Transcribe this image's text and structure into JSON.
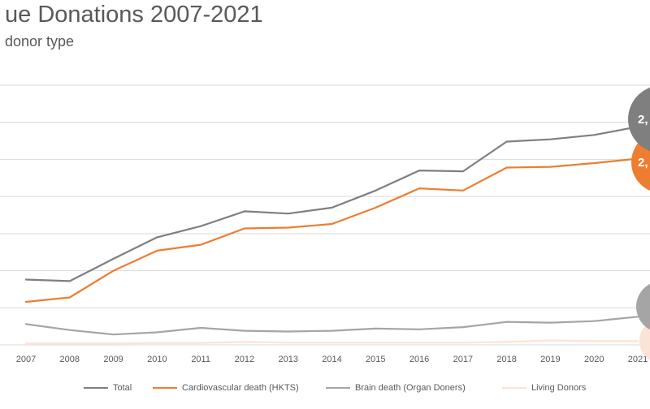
{
  "title": "ue Donations 2007-2021",
  "subtitle": "donor type",
  "colors": {
    "total": "#7f7f7f",
    "cardio": "#ed7d31",
    "brain": "#a5a5a5",
    "living": "#fbe3d6",
    "grid": "#d9d9d9"
  },
  "bubbles": {
    "total_label": "2,",
    "cardio_label": "2,"
  },
  "chart_data": {
    "type": "line",
    "categories": [
      "2007",
      "2008",
      "2009",
      "2010",
      "2011",
      "2012",
      "2013",
      "2014",
      "2015",
      "2016",
      "2017",
      "2018",
      "2019",
      "2020",
      "2021"
    ],
    "ylim": [
      0,
      3500
    ],
    "y_gridlines": [
      0,
      500,
      1000,
      1500,
      2000,
      2500,
      3000,
      3500
    ],
    "grid": true,
    "legend_position": "bottom",
    "series": [
      {
        "key": "total",
        "name": "Total",
        "values": [
          880,
          860,
          1160,
          1450,
          1600,
          1800,
          1770,
          1850,
          2080,
          2350,
          2340,
          2740,
          2770,
          2830,
          2940
        ]
      },
      {
        "key": "cardio",
        "name": "Cardiovascular death (HKTS)",
        "values": [
          580,
          640,
          1000,
          1270,
          1350,
          1570,
          1580,
          1630,
          1850,
          2110,
          2080,
          2390,
          2400,
          2450,
          2510
        ]
      },
      {
        "key": "brain",
        "name": "Brain death (Organ Doners)",
        "values": [
          280,
          200,
          140,
          170,
          230,
          190,
          180,
          190,
          220,
          210,
          240,
          310,
          300,
          320,
          380
        ]
      },
      {
        "key": "living",
        "name": "Living Donors",
        "values": [
          20,
          20,
          20,
          25,
          25,
          40,
          30,
          30,
          30,
          30,
          30,
          40,
          60,
          50,
          50
        ]
      }
    ]
  }
}
